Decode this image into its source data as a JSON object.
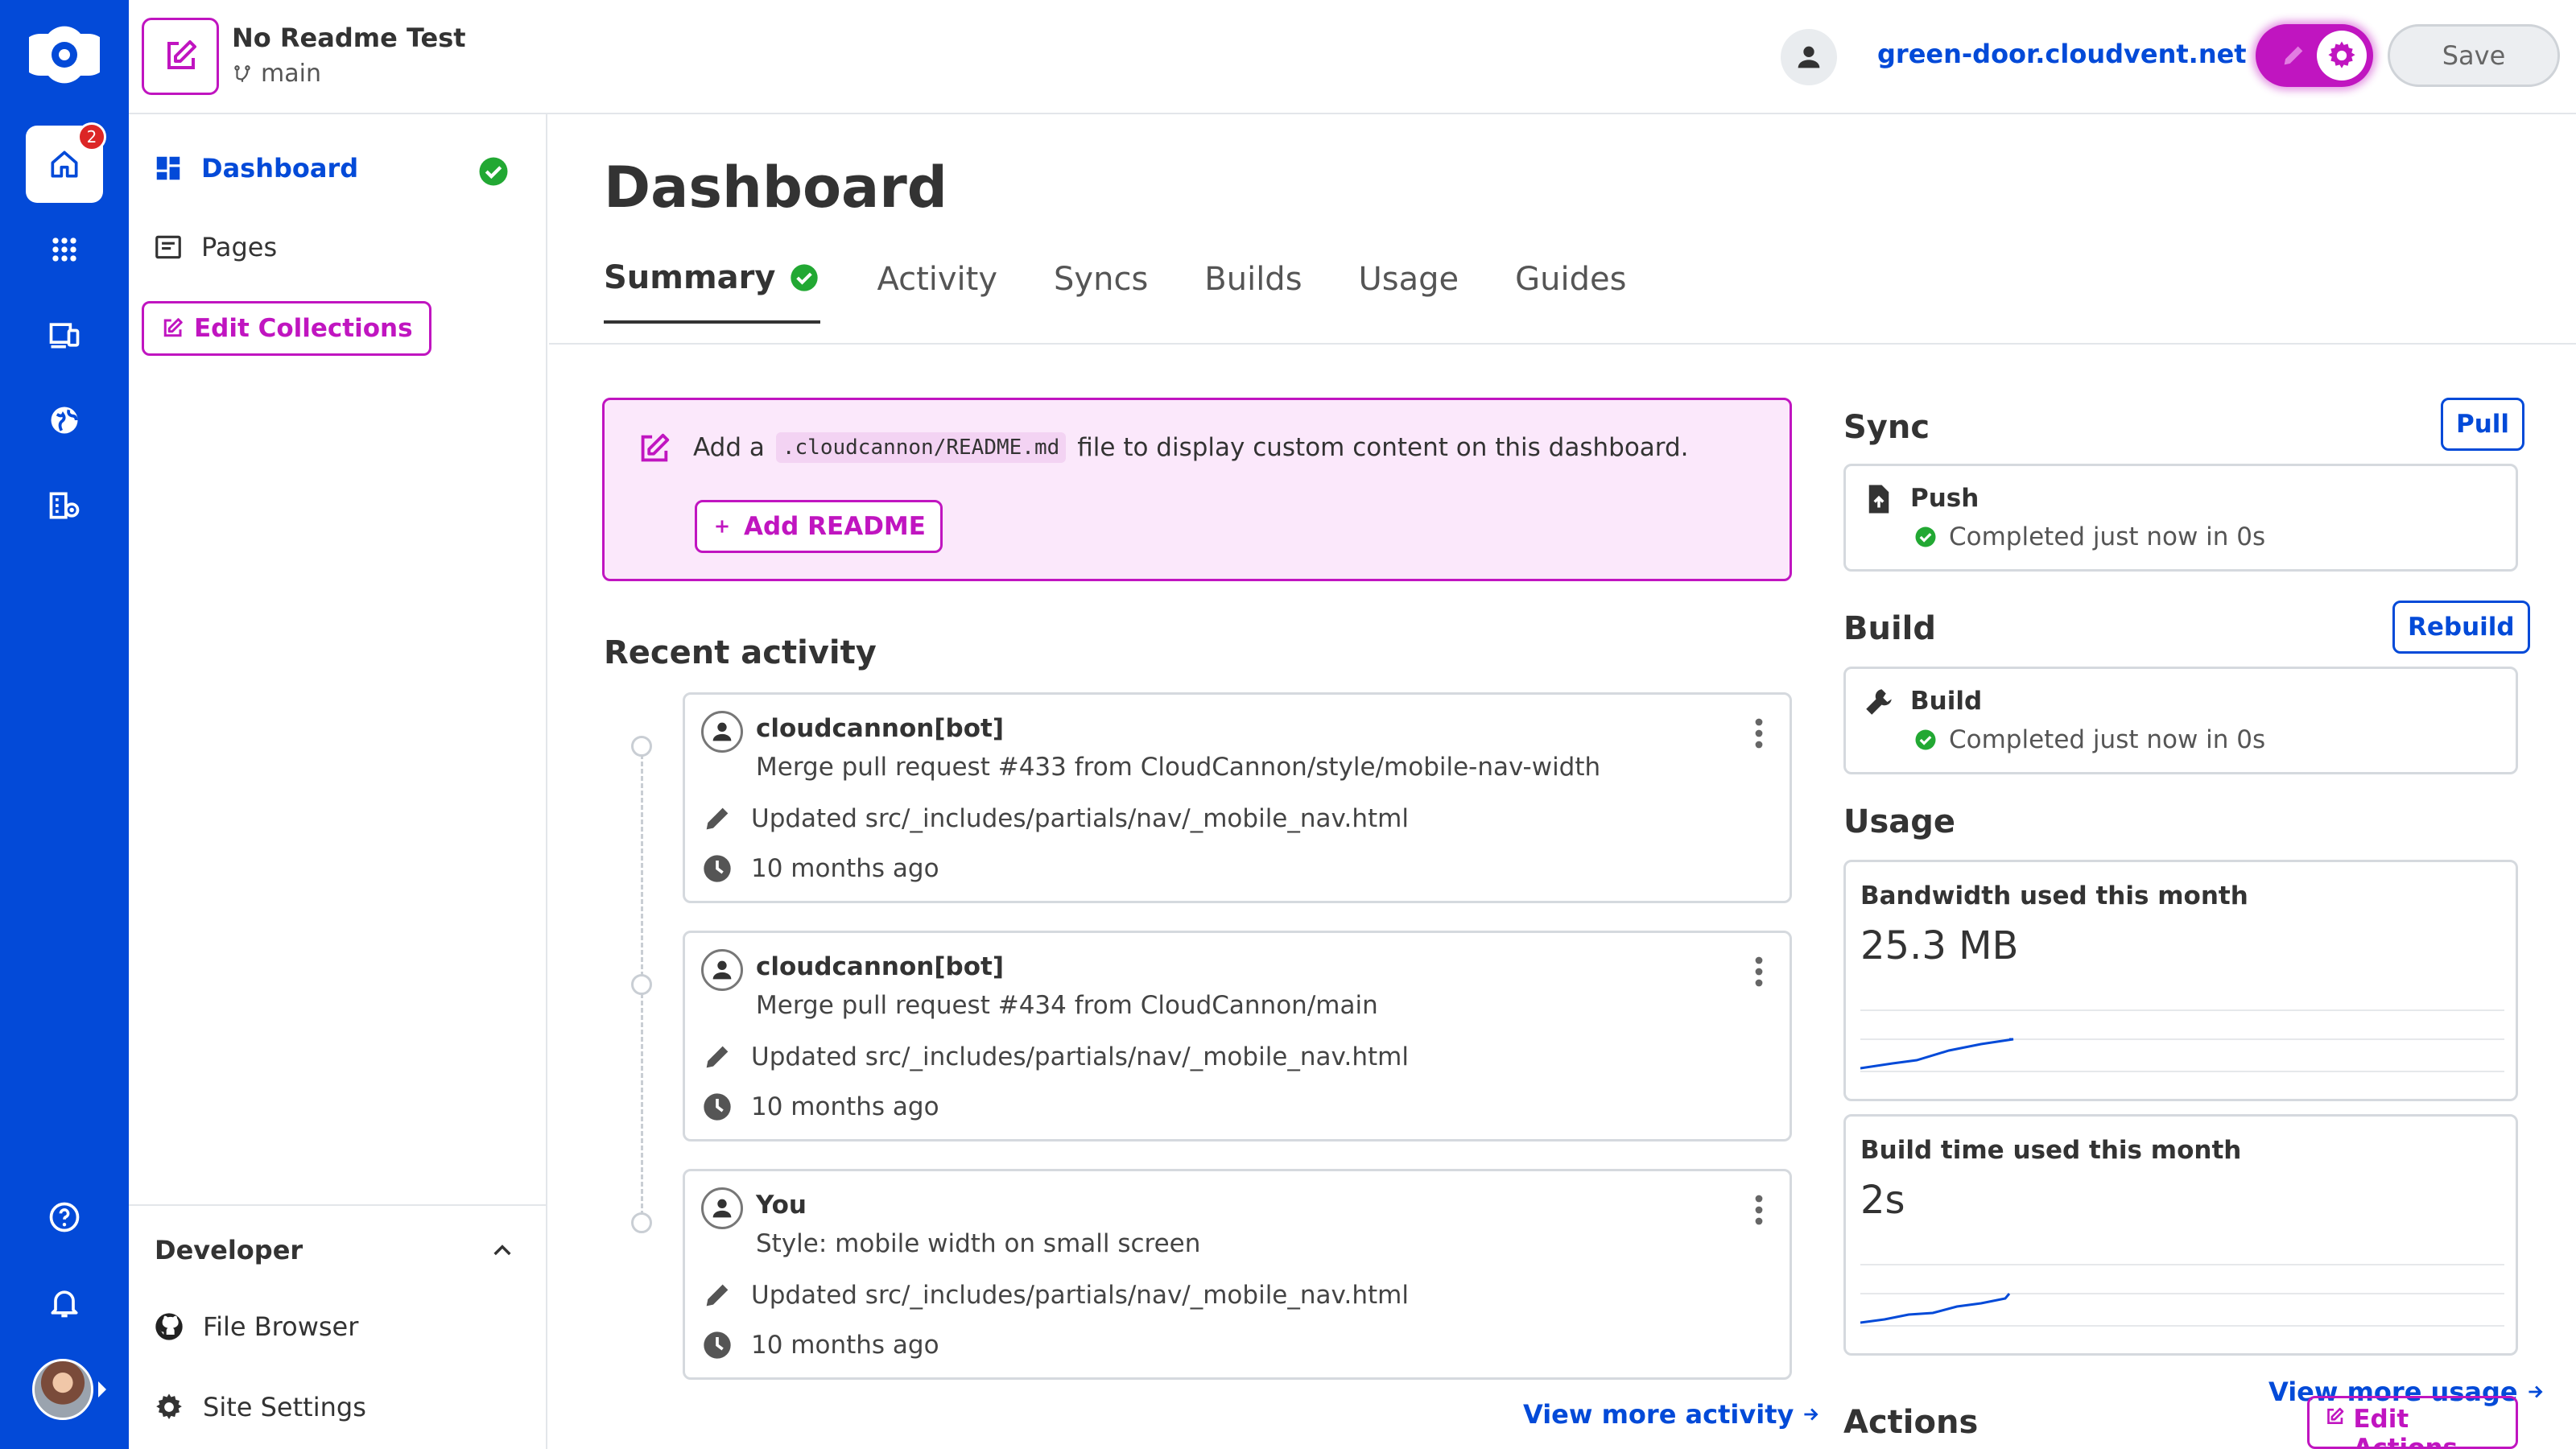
{
  "app": {
    "brand_icon": "cloudcannon-logo",
    "notification_count": "2"
  },
  "rail": {
    "items": [
      {
        "name": "home-icon"
      },
      {
        "name": "apps-grid-icon"
      },
      {
        "name": "devices-icon"
      },
      {
        "name": "globe-icon"
      },
      {
        "name": "organization-icon"
      },
      {
        "name": "help-icon"
      },
      {
        "name": "bell-icon"
      }
    ]
  },
  "header": {
    "site_name": "No Readme Test",
    "branch": "main",
    "site_url": "green-door.cloudvent.net",
    "save_label": "Save"
  },
  "sidebar": {
    "items": [
      {
        "label": "Dashboard",
        "icon": "dashboard-icon"
      },
      {
        "label": "Pages",
        "icon": "page-icon"
      }
    ],
    "edit_collections_label": "Edit Collections",
    "developer": {
      "title": "Developer",
      "items": [
        {
          "label": "File Browser",
          "icon": "github-icon"
        },
        {
          "label": "Site Settings",
          "icon": "gear-icon"
        }
      ]
    }
  },
  "main": {
    "title": "Dashboard",
    "tabs": [
      "Summary",
      "Activity",
      "Syncs",
      "Builds",
      "Usage",
      "Guides"
    ],
    "readme_notice": {
      "prefix": "Add a",
      "code": ".cloudcannon/README.md",
      "suffix": "file to display custom content on this dashboard.",
      "button": "Add README"
    },
    "recent_activity": {
      "title": "Recent activity",
      "items": [
        {
          "author": "cloudcannon[bot]",
          "message": "Merge pull request #433 from CloudCannon/style/mobile-nav-width",
          "file": "Updated src/_includes/partials/nav/_mobile_nav.html",
          "time": "10 months ago"
        },
        {
          "author": "cloudcannon[bot]",
          "message": "Merge pull request #434 from CloudCannon/main",
          "file": "Updated src/_includes/partials/nav/_mobile_nav.html",
          "time": "10 months ago"
        },
        {
          "author": "You",
          "message": "Style: mobile width on small screen",
          "file": "Updated src/_includes/partials/nav/_mobile_nav.html",
          "time": "10 months ago"
        }
      ],
      "view_more": "View more activity"
    },
    "sync": {
      "title": "Sync",
      "button": "Pull",
      "card_title": "Push",
      "status": "Completed just now in 0s"
    },
    "build": {
      "title": "Build",
      "button": "Rebuild",
      "card_title": "Build",
      "status": "Completed just now in 0s"
    },
    "usage": {
      "title": "Usage",
      "bandwidth_label": "Bandwidth used this month",
      "bandwidth_value": "25.3 MB",
      "buildtime_label": "Build time used this month",
      "buildtime_value": "2s",
      "view_more": "View more usage"
    },
    "actions": {
      "title": "Actions",
      "button": "Edit Actions"
    }
  },
  "colors": {
    "brand_blue": "#034ad8",
    "accent_magenta": "#c015c0",
    "success_green": "#22a833",
    "readme_bg": "#fbe8fb"
  }
}
